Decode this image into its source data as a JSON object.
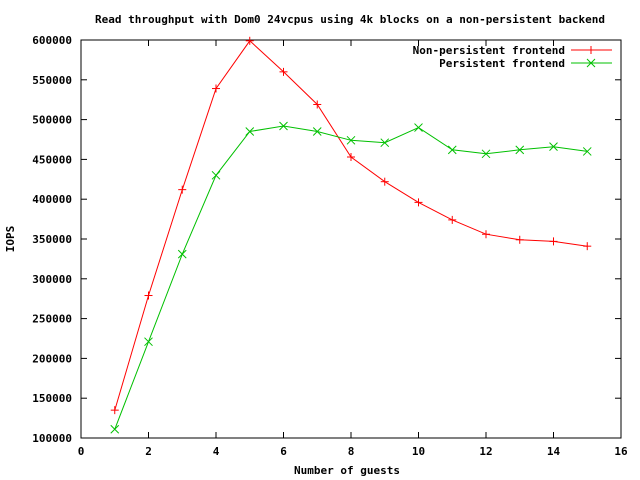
{
  "chart_data": {
    "type": "line",
    "title": "Read throughput with Dom0 24vcpus using 4k blocks on a non-persistent backend",
    "xlabel": "Number of guests",
    "ylabel": "IOPS",
    "xlim": [
      0,
      16
    ],
    "ylim": [
      100000,
      600000
    ],
    "xticks": [
      0,
      2,
      4,
      6,
      8,
      10,
      12,
      14,
      16
    ],
    "yticks": [
      100000,
      150000,
      200000,
      250000,
      300000,
      350000,
      400000,
      450000,
      500000,
      550000,
      600000
    ],
    "grid": false,
    "legend_position": "top-right",
    "series": [
      {
        "name": "Non-persistent frontend",
        "color": "#ff0000",
        "marker": "plus",
        "x": [
          1,
          2,
          3,
          4,
          5,
          6,
          7,
          8,
          9,
          10,
          11,
          12,
          13,
          14,
          15
        ],
        "y": [
          135000,
          279000,
          412000,
          539000,
          599000,
          560000,
          519000,
          453000,
          422000,
          396000,
          374000,
          356000,
          349000,
          347000,
          341000
        ]
      },
      {
        "name": "Persistent frontend",
        "color": "#00c000",
        "marker": "cross",
        "x": [
          1,
          2,
          3,
          4,
          5,
          6,
          7,
          8,
          9,
          10,
          11,
          12,
          13,
          14,
          15
        ],
        "y": [
          111000,
          221000,
          331000,
          430000,
          485000,
          492000,
          485000,
          474000,
          471000,
          490000,
          462000,
          457000,
          462000,
          466000,
          460000
        ]
      }
    ]
  }
}
